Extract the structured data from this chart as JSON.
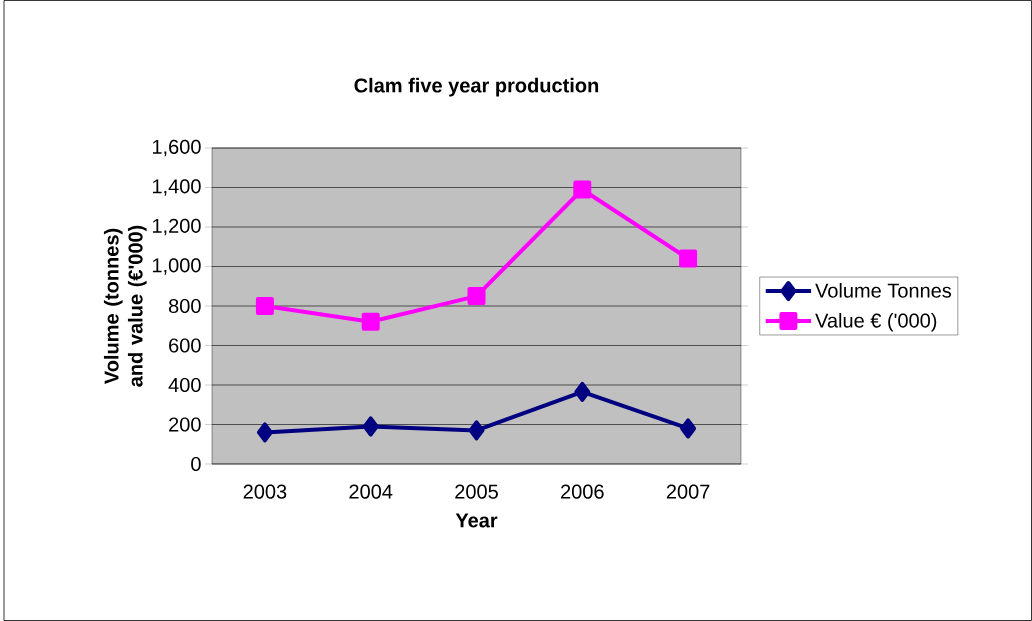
{
  "chart_data": {
    "type": "line",
    "title": "Clam five year production",
    "xlabel": "Year",
    "ylabel": "Volume (tonnes) and value (€'000)",
    "categories": [
      "2003",
      "2004",
      "2005",
      "2006",
      "2007"
    ],
    "series": [
      {
        "name": "Volume Tonnes",
        "color": "#000080",
        "marker": "diamond",
        "values": [
          160,
          190,
          170,
          365,
          180
        ]
      },
      {
        "name": "Value € ('000)",
        "color": "#ff00ff",
        "marker": "square",
        "values": [
          800,
          720,
          850,
          1390,
          1040
        ]
      }
    ],
    "ylim": [
      0,
      1600
    ],
    "yticks": [
      0,
      200,
      400,
      600,
      800,
      {
        "value": 1000,
        "label": "1,000"
      },
      {
        "value": 1200,
        "label": "1,200"
      },
      {
        "value": 1400,
        "label": "1,400"
      },
      {
        "value": 1600,
        "label": "1,600"
      }
    ],
    "grid": "y",
    "legend": "right",
    "line_style": "solid"
  }
}
